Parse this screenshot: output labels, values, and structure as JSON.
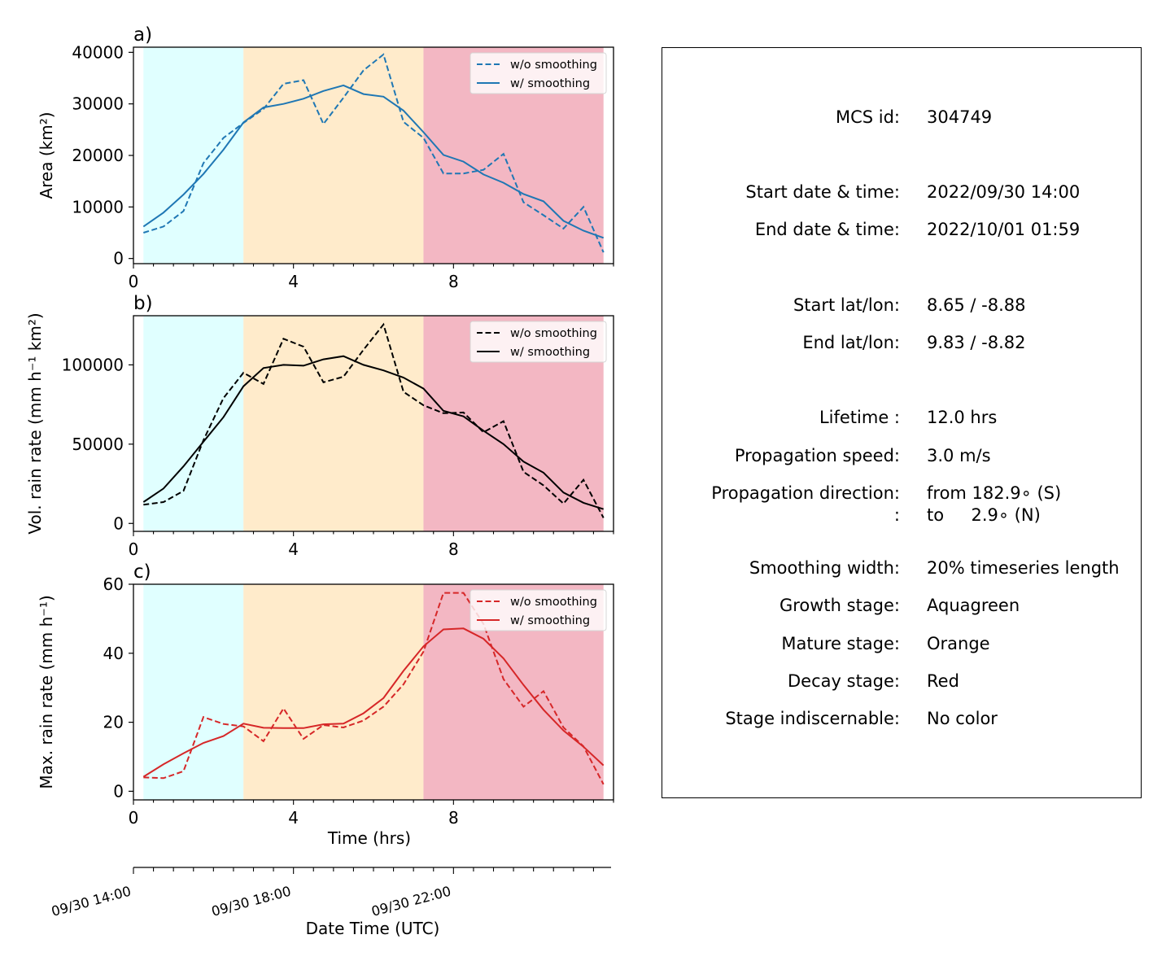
{
  "panels": [
    {
      "id": "area",
      "letter": "a)",
      "ylabel": "Area  (km²)",
      "ylim": [
        -1000,
        41000
      ],
      "yticks": [
        0,
        10000,
        20000,
        30000,
        40000
      ],
      "color": "#1f77b4",
      "legend": [
        "w/o smoothing",
        "w/ smoothing"
      ]
    },
    {
      "id": "volrain",
      "letter": "b)",
      "ylabel": "Vol. rain rate (mm h⁻¹ km²)",
      "ylim": [
        -5000,
        131000
      ],
      "yticks": [
        0,
        50000,
        100000
      ],
      "color": "#000000",
      "legend": [
        "w/o smoothing",
        "w/ smoothing"
      ]
    },
    {
      "id": "maxrain",
      "letter": "c)",
      "ylabel": "Max. rain rate  (mm h⁻¹)",
      "ylim": [
        -2.5,
        60
      ],
      "yticks": [
        0,
        20,
        40,
        60
      ],
      "color": "#d62728",
      "legend": [
        "w/o smoothing",
        "w/ smoothing"
      ]
    }
  ],
  "xaxis": {
    "label": "Time (hrs)",
    "xlim": [
      0,
      12
    ],
    "major_ticks": [
      0,
      4,
      8
    ],
    "date_label": "Date Time (UTC)",
    "date_ticks": [
      {
        "x": 0,
        "label": "09/30 14:00"
      },
      {
        "x": 4,
        "label": "09/30 18:00"
      },
      {
        "x": 8,
        "label": "09/30 22:00"
      }
    ]
  },
  "stages": [
    {
      "name": "Aquagreen",
      "start": 0.25,
      "end": 2.75,
      "color": "#e0ffff"
    },
    {
      "name": "Orange",
      "start": 2.75,
      "end": 7.25,
      "color": "#ffebcb"
    },
    {
      "name": "Red",
      "start": 7.25,
      "end": 11.75,
      "color": "#f3b7c3"
    }
  ],
  "chart_data": [
    {
      "type": "line",
      "title": "a)",
      "xlabel": "",
      "ylabel": "Area  (km²)",
      "x": [
        0.25,
        0.75,
        1.25,
        1.75,
        2.25,
        2.75,
        3.25,
        3.75,
        4.25,
        4.75,
        5.25,
        5.75,
        6.25,
        6.75,
        7.25,
        7.75,
        8.25,
        8.75,
        9.25,
        9.75,
        10.25,
        10.75,
        11.25,
        11.75
      ],
      "series": [
        {
          "name": "w/o smoothing",
          "style": "dashed",
          "values": [
            5000,
            6200,
            9200,
            18500,
            23400,
            26300,
            29000,
            33900,
            34600,
            26100,
            31200,
            36500,
            39600,
            26500,
            23400,
            16500,
            16500,
            17200,
            20300,
            10900,
            8400,
            5800,
            10000,
            1200
          ]
        },
        {
          "name": "w/ smoothing",
          "style": "solid",
          "values": [
            6200,
            8900,
            12400,
            16400,
            21100,
            26400,
            29300,
            30000,
            31000,
            32500,
            33600,
            31900,
            31400,
            28700,
            24500,
            20100,
            18800,
            16300,
            14700,
            12500,
            11100,
            7300,
            5400,
            4000
          ]
        }
      ]
    },
    {
      "type": "line",
      "title": "b)",
      "xlabel": "",
      "ylabel": "Vol. rain rate (mm h⁻¹ km²)",
      "x": [
        0.25,
        0.75,
        1.25,
        1.75,
        2.25,
        2.75,
        3.25,
        3.75,
        4.25,
        4.75,
        5.25,
        5.75,
        6.25,
        6.75,
        7.25,
        7.75,
        8.25,
        8.75,
        9.25,
        9.75,
        10.25,
        10.75,
        11.25,
        11.75
      ],
      "series": [
        {
          "name": "w/o smoothing",
          "style": "dashed",
          "values": [
            11800,
            13500,
            20500,
            52500,
            79000,
            95000,
            88000,
            116500,
            111500,
            89000,
            92500,
            109500,
            125500,
            83000,
            74500,
            69500,
            70000,
            57500,
            64500,
            32500,
            24000,
            12500,
            27500,
            3500
          ]
        },
        {
          "name": "w/ smoothing",
          "style": "solid",
          "values": [
            13500,
            22000,
            36000,
            51500,
            67000,
            86500,
            98000,
            100000,
            99500,
            103500,
            105500,
            100000,
            96500,
            92000,
            85000,
            71000,
            67500,
            58500,
            50000,
            39000,
            32000,
            19500,
            13000,
            9000
          ]
        }
      ]
    },
    {
      "type": "line",
      "title": "c)",
      "xlabel": "Time (hrs)",
      "ylabel": "Max. rain rate  (mm h⁻¹)",
      "x": [
        0.25,
        0.75,
        1.25,
        1.75,
        2.25,
        2.75,
        3.25,
        3.75,
        4.25,
        4.75,
        5.25,
        5.75,
        6.25,
        6.75,
        7.25,
        7.75,
        8.25,
        8.75,
        9.25,
        9.75,
        10.25,
        10.75,
        11.25,
        11.75
      ],
      "series": [
        {
          "name": "w/o smoothing",
          "style": "dashed",
          "values": [
            4.0,
            3.8,
            5.8,
            21.5,
            19.5,
            18.8,
            14.5,
            24.0,
            15.2,
            19.2,
            18.5,
            20.5,
            24.5,
            31.0,
            40.5,
            57.5,
            57.5,
            48.5,
            32.5,
            24.5,
            29.0,
            18.5,
            13.0,
            2.0
          ]
        },
        {
          "name": "w/ smoothing",
          "style": "solid",
          "values": [
            4.2,
            7.8,
            11.0,
            14.0,
            16.0,
            19.6,
            18.4,
            18.3,
            18.3,
            19.4,
            19.6,
            22.6,
            27.0,
            34.9,
            42.0,
            46.9,
            47.2,
            44.2,
            38.5,
            30.8,
            23.6,
            17.6,
            12.9,
            7.5
          ]
        }
      ]
    }
  ],
  "info": {
    "mcs_id_label": "MCS id:",
    "mcs_id": "304749",
    "start_dt_label": "Start date & time:",
    "start_dt": "2022/09/30 14:00",
    "end_dt_label": "End date & time:",
    "end_dt": "2022/10/01 01:59",
    "start_latlon_label": "Start lat/lon:",
    "start_latlon": "8.65 / -8.88",
    "end_latlon_label": "End lat/lon:",
    "end_latlon": "9.83 / -8.82",
    "lifetime_label": "Lifetime :",
    "lifetime": "12.0 hrs",
    "speed_label": "Propagation speed:",
    "speed": "3.0 m/s",
    "direction_label": "Propagation direction:",
    "direction_from": "from 182.9∘ (S)",
    "direction_label2": ":",
    "direction_to": "to     2.9∘ (N)",
    "smoothing_label": "Smoothing width:",
    "smoothing": "20% timeseries length",
    "growth_label": "Growth stage:",
    "growth": "Aquagreen",
    "mature_label": "Mature stage:",
    "mature": "Orange",
    "decay_label": "Decay stage:",
    "decay": "Red",
    "indisc_label": "Stage indiscernable:",
    "indisc": "No color"
  }
}
